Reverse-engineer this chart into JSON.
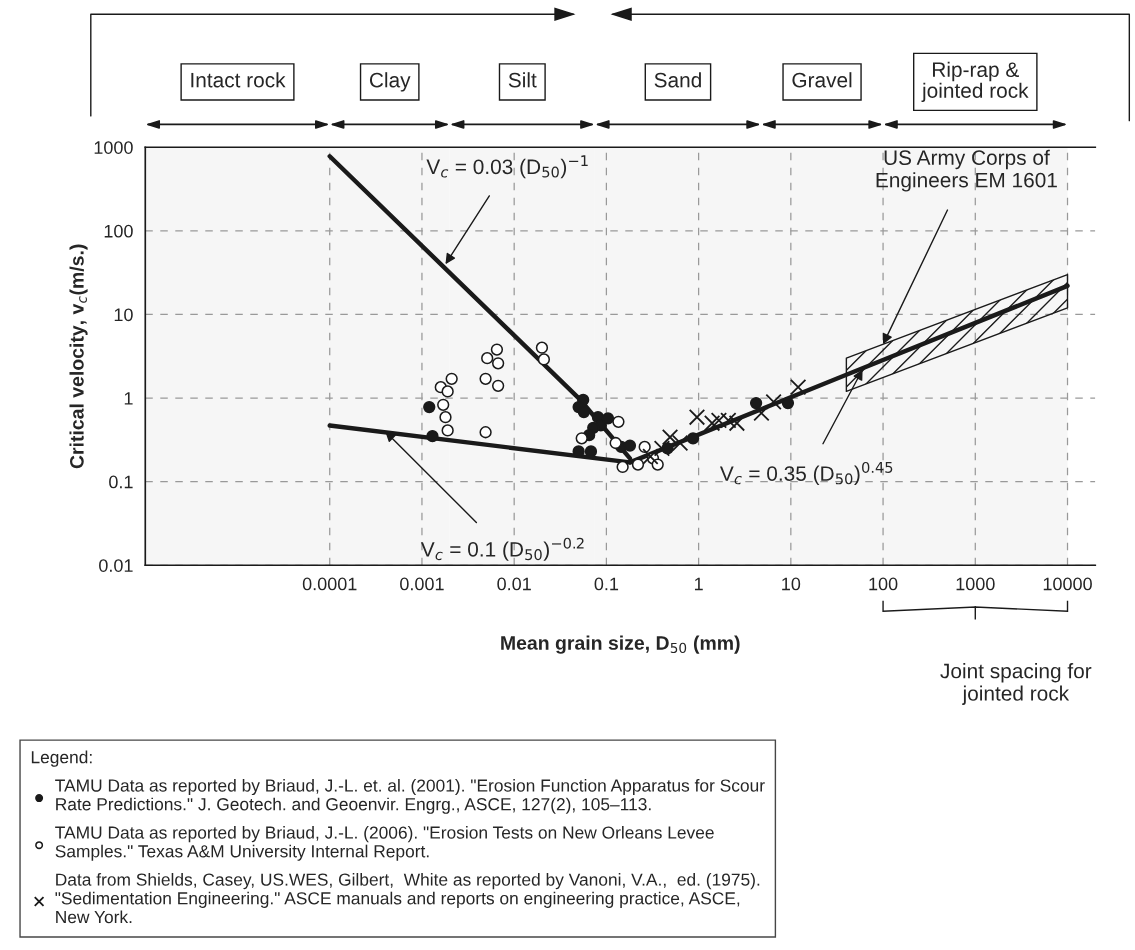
{
  "chart_data": {
    "type": "scatter",
    "xlabel": "Mean grain size, D$_{50}$ (mm)",
    "ylabel": "Critical velocity, v$_{c}$(m/s.)",
    "legend_title": "Legend:",
    "log": "xy",
    "xlim": [
      1e-06,
      20000
    ],
    "ylim": [
      0.01,
      1000
    ],
    "xticks": [
      0.0001,
      0.001,
      0.01,
      0.1,
      1,
      10,
      100,
      1000,
      10000
    ],
    "yticks": [
      0.01,
      0.1,
      1,
      10,
      100,
      1000
    ],
    "grid": true,
    "legend": "bottom",
    "series": [
      {
        "type": "line",
        "color": "#1a1a1a",
        "marker": "none",
        "x": [
          0.0001,
          0.05,
          0.18
        ],
        "values": [
          780,
          1.0,
          0.19
        ]
      },
      {
        "type": "line",
        "color": "#1a1a1a",
        "marker": "none",
        "x": [
          0.0001,
          0.18
        ],
        "values": [
          0.47,
          0.17
        ]
      },
      {
        "type": "line",
        "color": "#1a1a1a",
        "marker": "none",
        "x": [
          0.18,
          40,
          10000
        ],
        "values": [
          0.17,
          1.9,
          22
        ],
        "lower": [
          null,
          1.2,
          12
        ],
        "upper": [
          null,
          3.0,
          30
        ]
      },
      {
        "name": "TAMU Data as reported by Briaud, J.-L. et. al. (2001). \"Erosion Function Apparatus for Scour\nRate Predictions.\" J. Geotech. and Geoenvir. Engrg., ASCE, 127(2), 105–113.",
        "color": "#1a1a1a",
        "marker": "circle",
        "x": [
          0.0012,
          0.0013,
          0.056,
          0.05,
          0.057,
          0.081,
          0.087,
          0.104,
          0.072,
          0.065,
          0.05,
          0.068,
          0.145,
          0.18,
          0.46,
          0.87,
          4.2,
          9.3
        ],
        "values": [
          0.78,
          0.35,
          0.95,
          0.78,
          0.68,
          0.59,
          0.47,
          0.57,
          0.44,
          0.36,
          0.23,
          0.23,
          0.26,
          0.27,
          0.25,
          0.33,
          0.87,
          0.87
        ]
      },
      {
        "name": "TAMU Data as reported by Briaud, J.-L. (2006). \"Erosion Tests on New Orleans Levee\nSamples.\" Texas A&M University Internal Report.",
        "color": "#ffffff",
        "marker": "circle",
        "x": [
          0.02,
          0.021,
          0.0051,
          0.0065,
          0.0067,
          0.0049,
          0.0067,
          0.0049,
          0.0021,
          0.0016,
          0.0019,
          0.0017,
          0.0018,
          0.0019,
          0.135,
          0.054,
          0.126,
          0.26,
          0.32,
          0.15,
          0.22,
          0.36
        ],
        "values": [
          4.0,
          2.9,
          3.0,
          3.8,
          2.6,
          1.7,
          1.4,
          0.39,
          1.7,
          1.35,
          1.2,
          0.83,
          0.59,
          0.41,
          0.52,
          0.33,
          0.29,
          0.26,
          0.19,
          0.15,
          0.16,
          0.16
        ]
      },
      {
        "name": "Data from Shields, Casey, US.WES, Gilbert,  White as reported by Vanoni, V.A.,  ed. (1975).\n\"Sedimentation Engineering.\" ASCE manuals and reports on engineering practice, ASCE,\nNew York.",
        "color": "#1a1a1a",
        "marker": "cross",
        "x": [
          0.96,
          0.49,
          0.63,
          1.4,
          1.66,
          2.1,
          2.6,
          4.8,
          12,
          0.3,
          0.4,
          6.5
        ],
        "values": [
          0.59,
          0.34,
          0.29,
          0.5,
          0.54,
          0.54,
          0.5,
          0.66,
          1.35,
          0.2,
          0.25,
          0.9
        ]
      }
    ],
    "bands": [
      {
        "axis": "x",
        "from": 1e-06,
        "to": 0.0001,
        "label": "Intact rock"
      },
      {
        "axis": "x",
        "from": 0.0001,
        "to": 0.002,
        "label": "Clay"
      },
      {
        "axis": "x",
        "from": 0.002,
        "to": 0.075,
        "label": "Silt"
      },
      {
        "axis": "x",
        "from": 0.075,
        "to": 4.75,
        "label": "Sand"
      },
      {
        "axis": "x",
        "from": 4.75,
        "to": 100,
        "label": "Gravel"
      },
      {
        "axis": "x",
        "from": 100,
        "to": 10000,
        "label": "Rip-rap &\njointed rock"
      }
    ],
    "annotations": [
      {
        "text": "V$_{c}$ = 0.03 (D$_{50}$)$^{−1}$",
        "x": 0.0018,
        "y": 40
      },
      {
        "text": "V$_{c}$ = 0.1 (D$_{50}$)$^{−0.2}$",
        "x": 0.0004,
        "y": 0.4
      },
      {
        "text": "V$_{c}$ = 0.35 (D$_{50}$)$^{0.45}$",
        "x": 60,
        "y": 2.2
      },
      {
        "text": "US Army Corps of\nEngineers EM 1601",
        "x": 100,
        "y": 4.4
      },
      "Joint spacing for\njointed rock"
    ]
  }
}
